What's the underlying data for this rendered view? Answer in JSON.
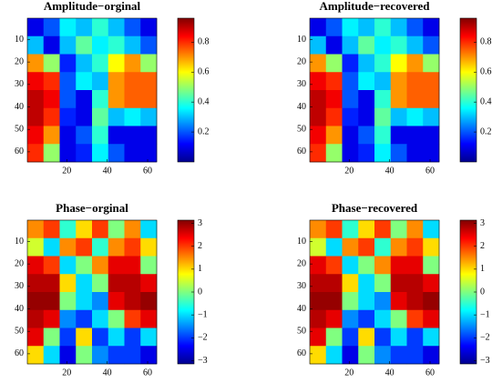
{
  "chart_data": [
    {
      "type": "heatmap",
      "title": "Amplitude−orginal",
      "xlim": [
        0.5,
        64.5
      ],
      "ylim": [
        64.5,
        0.5
      ],
      "xticks": [
        20,
        40,
        60
      ],
      "yticks": [
        10,
        20,
        30,
        40,
        50,
        60
      ],
      "clim": [
        0,
        0.96
      ],
      "cticks": [
        0.2,
        0.4,
        0.6,
        0.8
      ],
      "colormap": "jet",
      "z": [
        [
          0.1,
          0.2,
          0.35,
          0.3,
          0.4,
          0.3,
          0.2,
          0.1
        ],
        [
          0.3,
          0.1,
          0.3,
          0.45,
          0.35,
          0.4,
          0.3,
          0.2
        ],
        [
          0.7,
          0.5,
          0.15,
          0.3,
          0.4,
          0.6,
          0.7,
          0.5
        ],
        [
          0.85,
          0.8,
          0.2,
          0.35,
          0.3,
          0.7,
          0.75,
          0.75
        ],
        [
          0.9,
          0.85,
          0.2,
          0.1,
          0.4,
          0.7,
          0.75,
          0.75
        ],
        [
          0.9,
          0.8,
          0.15,
          0.1,
          0.45,
          0.3,
          0.35,
          0.3
        ],
        [
          0.85,
          0.7,
          0.1,
          0.2,
          0.4,
          0.1,
          0.1,
          0.1
        ],
        [
          0.8,
          0.5,
          0.1,
          0.15,
          0.35,
          0.2,
          0.1,
          0.1
        ]
      ]
    },
    {
      "type": "heatmap",
      "title": "Amplitude−recovered",
      "xlim": [
        0.5,
        64.5
      ],
      "ylim": [
        64.5,
        0.5
      ],
      "xticks": [
        20,
        40,
        60
      ],
      "yticks": [
        10,
        20,
        30,
        40,
        50,
        60
      ],
      "clim": [
        0,
        0.96
      ],
      "cticks": [
        0.2,
        0.4,
        0.6,
        0.8
      ],
      "colormap": "jet",
      "z": [
        [
          0.1,
          0.2,
          0.35,
          0.3,
          0.4,
          0.3,
          0.2,
          0.1
        ],
        [
          0.3,
          0.1,
          0.3,
          0.45,
          0.35,
          0.4,
          0.3,
          0.2
        ],
        [
          0.7,
          0.5,
          0.15,
          0.3,
          0.4,
          0.6,
          0.7,
          0.5
        ],
        [
          0.85,
          0.8,
          0.2,
          0.35,
          0.3,
          0.7,
          0.75,
          0.75
        ],
        [
          0.9,
          0.85,
          0.2,
          0.1,
          0.4,
          0.7,
          0.75,
          0.75
        ],
        [
          0.9,
          0.8,
          0.15,
          0.1,
          0.45,
          0.3,
          0.35,
          0.3
        ],
        [
          0.85,
          0.7,
          0.1,
          0.2,
          0.4,
          0.1,
          0.1,
          0.1
        ],
        [
          0.8,
          0.5,
          0.1,
          0.15,
          0.35,
          0.2,
          0.1,
          0.1
        ]
      ]
    },
    {
      "type": "heatmap",
      "title": "Phase−orginal",
      "xlim": [
        0.5,
        64.5
      ],
      "ylim": [
        64.5,
        0.5
      ],
      "xticks": [
        20,
        40,
        60
      ],
      "yticks": [
        10,
        20,
        30,
        40,
        50,
        60
      ],
      "clim": [
        -3.14,
        3.14
      ],
      "cticks": [
        {
          "value": -3,
          "label": "−3"
        },
        {
          "value": -2,
          "label": "−2"
        },
        {
          "value": -1,
          "label": "−1"
        },
        0,
        1,
        2,
        3
      ],
      "colormap": "jet",
      "z": [
        [
          1.5,
          2,
          -0.5,
          1,
          2,
          0,
          1.5,
          -1
        ],
        [
          0.5,
          -1,
          1.5,
          2,
          -0.5,
          1.5,
          2,
          1
        ],
        [
          2.5,
          2,
          -1,
          0,
          1.5,
          2.5,
          2.5,
          0
        ],
        [
          2.8,
          2.8,
          1,
          -1,
          0,
          2.8,
          2.8,
          2.5
        ],
        [
          3,
          3,
          0,
          -1,
          -1.5,
          2.5,
          2.8,
          3
        ],
        [
          2.8,
          2.5,
          -1.5,
          -2,
          -1,
          0,
          2,
          2.5
        ],
        [
          2.5,
          0,
          -2,
          1,
          -2,
          -1,
          -2,
          -1
        ],
        [
          1,
          -1,
          -2.5,
          0,
          -1.5,
          -2,
          -2,
          -2.5
        ]
      ]
    },
    {
      "type": "heatmap",
      "title": "Phase−recovered",
      "xlim": [
        0.5,
        64.5
      ],
      "ylim": [
        64.5,
        0.5
      ],
      "xticks": [
        20,
        40,
        60
      ],
      "yticks": [
        10,
        20,
        30,
        40,
        50,
        60
      ],
      "clim": [
        -3.14,
        3.14
      ],
      "cticks": [
        {
          "value": -3,
          "label": "−3"
        },
        {
          "value": -2,
          "label": "−2"
        },
        {
          "value": -1,
          "label": "−1"
        },
        0,
        1,
        2,
        3
      ],
      "colormap": "jet",
      "z": [
        [
          1.5,
          2,
          -0.5,
          1,
          2,
          0,
          1.5,
          -1
        ],
        [
          0.5,
          -1,
          1.5,
          2,
          -0.5,
          1.5,
          2,
          1
        ],
        [
          2.5,
          2,
          -1,
          0,
          1.5,
          2.5,
          2.5,
          0
        ],
        [
          2.8,
          2.8,
          1,
          -1,
          0,
          2.8,
          2.8,
          2.5
        ],
        [
          3,
          3,
          0,
          -1,
          -1.5,
          2.5,
          2.8,
          3
        ],
        [
          2.8,
          2.5,
          -1.5,
          -2,
          -1,
          0,
          2,
          2.5
        ],
        [
          2.5,
          0,
          -2,
          1,
          -2,
          -1,
          -2,
          -1
        ],
        [
          1,
          -1,
          -2.5,
          0,
          -1.5,
          -2,
          -2,
          -2.5
        ]
      ]
    }
  ]
}
